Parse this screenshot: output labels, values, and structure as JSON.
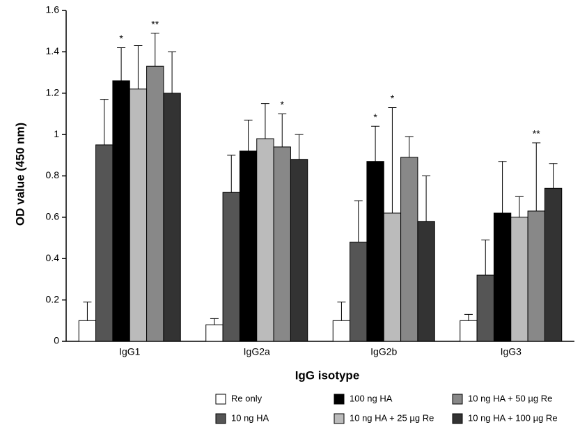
{
  "chart_data": {
    "type": "bar",
    "ylabel": "OD value (450 nm)",
    "xlabel": "IgG isotype",
    "categories": [
      "IgG1",
      "IgG2a",
      "IgG2b",
      "IgG3"
    ],
    "ylim": [
      0,
      1.6
    ],
    "yticks": [
      0,
      0.2,
      0.4,
      0.6,
      0.8,
      1,
      1.2,
      1.4,
      1.6
    ],
    "series": [
      {
        "name": "Re only",
        "color": "#ffffff",
        "values": [
          0.1,
          0.08,
          0.1,
          0.1
        ],
        "errors": [
          0.09,
          0.03,
          0.09,
          0.03
        ],
        "marks": [
          null,
          null,
          null,
          null
        ]
      },
      {
        "name": "10 ng HA",
        "color": "#555555",
        "values": [
          0.95,
          0.72,
          0.48,
          0.32
        ],
        "errors": [
          0.22,
          0.18,
          0.2,
          0.17
        ],
        "marks": [
          null,
          null,
          null,
          null
        ]
      },
      {
        "name": "100 ng HA",
        "color": "#000000",
        "values": [
          1.26,
          0.92,
          0.87,
          0.62
        ],
        "errors": [
          0.16,
          0.15,
          0.17,
          0.25
        ],
        "marks": [
          "*",
          null,
          "*",
          null
        ]
      },
      {
        "name": "10 ng HA + 25 µg Re",
        "color": "#bbbbbb",
        "values": [
          1.22,
          0.98,
          0.62,
          0.6
        ],
        "errors": [
          0.21,
          0.17,
          0.51,
          0.1
        ],
        "marks": [
          null,
          null,
          "*",
          null
        ]
      },
      {
        "name": "10 ng HA + 50 µg Re",
        "color": "#888888",
        "values": [
          1.33,
          0.94,
          0.89,
          0.63
        ],
        "errors": [
          0.16,
          0.16,
          0.1,
          0.33
        ],
        "marks": [
          "**",
          "*",
          null,
          "**"
        ]
      },
      {
        "name": "10 ng HA + 100 µg Re",
        "color": "#333333",
        "values": [
          1.2,
          0.88,
          0.58,
          0.74
        ],
        "errors": [
          0.2,
          0.12,
          0.22,
          0.12
        ],
        "marks": [
          null,
          null,
          null,
          null
        ]
      }
    ]
  }
}
